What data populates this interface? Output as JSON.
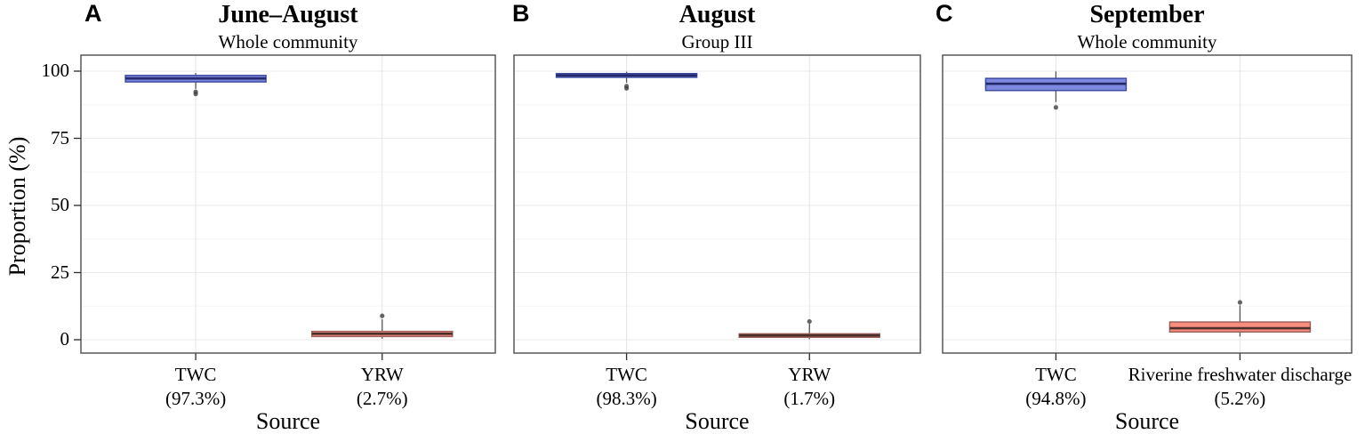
{
  "figure": {
    "ylabel": "Proportion (%)",
    "background": "#ffffff",
    "panel_border_color": "#4d4d4d",
    "tick_color": "#2b2b2b",
    "grid_major_color": "#e9e9e9",
    "grid_minor_color": "#f5f5f5",
    "grid_vertical_color": "#e4e4e4",
    "outlier_color": "#404040",
    "whisker_color": "#555555",
    "box_colors": {
      "blue": {
        "fill": "#7E88DF",
        "stroke": "#3D4BA0",
        "median": "#23296B"
      },
      "red": {
        "fill": "#FA8D80",
        "stroke": "#9A625B",
        "median": "#4C2E2B"
      }
    }
  },
  "chart_data": [
    {
      "type": "box",
      "letter": "A",
      "title": "June–August",
      "subtitle": "Whole community",
      "xlabel": "Source",
      "ylabel": "Proportion (%)",
      "ylim": [
        0,
        100
      ],
      "yticks": [
        0,
        25,
        50,
        75,
        100
      ],
      "grid": true,
      "categories": [
        "TWC",
        "YRW"
      ],
      "category_sublabels": [
        "(97.3%)",
        "(2.7%)"
      ],
      "series": [
        {
          "name": "TWC",
          "mean_pct": 97.3,
          "color_key": "blue",
          "q1": 96.0,
          "median": 97.3,
          "q3": 98.4,
          "whisker_low": 93.4,
          "whisker_high": 99.3,
          "outliers": [
            91.5,
            92.3
          ]
        },
        {
          "name": "YRW",
          "mean_pct": 2.7,
          "color_key": "red",
          "q1": 1.2,
          "median": 2.2,
          "q3": 3.1,
          "whisker_low": 0.4,
          "whisker_high": 7.6,
          "outliers": [
            8.9
          ]
        }
      ]
    },
    {
      "type": "box",
      "letter": "B",
      "title": "August",
      "subtitle": "Group III",
      "xlabel": "Source",
      "ylabel": "Proportion (%)",
      "ylim": [
        0,
        100
      ],
      "yticks": [
        0,
        25,
        50,
        75,
        100
      ],
      "grid": true,
      "categories": [
        "TWC",
        "YRW"
      ],
      "category_sublabels": [
        "(98.3%)",
        "(1.7%)"
      ],
      "series": [
        {
          "name": "TWC",
          "mean_pct": 98.3,
          "color_key": "blue",
          "q1": 97.7,
          "median": 98.4,
          "q3": 99.1,
          "whisker_low": 95.7,
          "whisker_high": 99.8,
          "outliers": [
            93.6,
            94.4
          ]
        },
        {
          "name": "YRW",
          "mean_pct": 1.7,
          "color_key": "red",
          "q1": 0.9,
          "median": 1.6,
          "q3": 2.2,
          "whisker_low": 0.2,
          "whisker_high": 5.9,
          "outliers": [
            6.8
          ]
        }
      ]
    },
    {
      "type": "box",
      "letter": "C",
      "title": "September",
      "subtitle": "Whole community",
      "xlabel": "Source",
      "ylabel": "Proportion (%)",
      "ylim": [
        0,
        100
      ],
      "yticks": [
        0,
        25,
        50,
        75,
        100
      ],
      "grid": true,
      "categories": [
        "TWC",
        "Riverine freshwater discharge"
      ],
      "category_sublabels": [
        "(94.8%)",
        "(5.2%)"
      ],
      "series": [
        {
          "name": "TWC",
          "mean_pct": 94.8,
          "color_key": "blue",
          "q1": 92.8,
          "median": 95.3,
          "q3": 97.3,
          "whisker_low": 88.5,
          "whisker_high": 99.9,
          "outliers": [
            86.5
          ]
        },
        {
          "name": "Riverine freshwater discharge",
          "mean_pct": 5.2,
          "color_key": "red",
          "q1": 2.9,
          "median": 4.3,
          "q3": 6.6,
          "whisker_low": 1.2,
          "whisker_high": 12.8,
          "outliers": [
            13.9
          ]
        }
      ]
    }
  ]
}
